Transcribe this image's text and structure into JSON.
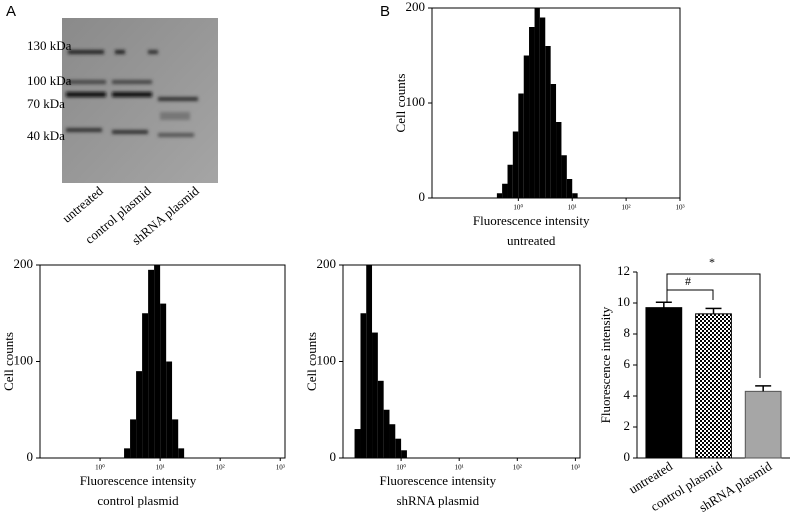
{
  "panel_labels": [
    "A",
    "B"
  ],
  "blot": {
    "markers": [
      "130 kDa",
      "100 kDa",
      "70 kDa",
      "40 kDa"
    ],
    "lanes": [
      "untreated",
      "control plasmid",
      "shRNA plasmid"
    ]
  },
  "chart_data": [
    {
      "type": "histogram",
      "subtitle": "untreated",
      "xlabel": "Fluorescence intensity",
      "ylabel": "Cell counts",
      "xscale": "log",
      "xlim": [
        0.025,
        1000
      ],
      "xticks": [
        {
          "value": 1,
          "label": "10⁰"
        },
        {
          "value": 10,
          "label": "10¹"
        },
        {
          "value": 100,
          "label": "10²"
        },
        {
          "value": 1000,
          "label": "10³"
        }
      ],
      "ylim": [
        0,
        200
      ],
      "yticks": [
        0,
        100,
        200
      ],
      "color": "#000000",
      "bins": [
        0.4,
        0.5,
        0.63,
        0.79,
        1,
        1.26,
        1.58,
        2,
        2.51,
        3.16,
        3.98,
        5.01,
        6.31,
        7.94,
        10,
        12.6
      ],
      "counts": [
        5,
        15,
        35,
        70,
        110,
        150,
        180,
        200,
        190,
        160,
        120,
        80,
        45,
        20,
        5
      ]
    },
    {
      "type": "histogram",
      "subtitle": "control plasmid",
      "xlabel": "Fluorescence intensity",
      "ylabel": "Cell counts",
      "xscale": "log",
      "xlim": [
        0.1,
        1200
      ],
      "xticks": [
        {
          "value": 1,
          "label": "10⁰"
        },
        {
          "value": 10,
          "label": "10¹"
        },
        {
          "value": 100,
          "label": "10²"
        },
        {
          "value": 1000,
          "label": "10³"
        }
      ],
      "ylim": [
        0,
        200
      ],
      "yticks": [
        0,
        100,
        200
      ],
      "color": "#000000",
      "bins": [
        2.51,
        3.16,
        3.98,
        5.01,
        6.31,
        7.94,
        10,
        12.6,
        15.8,
        20,
        25.1
      ],
      "counts": [
        10,
        40,
        90,
        150,
        195,
        200,
        160,
        100,
        40,
        10
      ]
    },
    {
      "type": "histogram",
      "subtitle": "shRNA plasmid",
      "xlabel": "Fluorescence intensity",
      "ylabel": "Cell counts",
      "xscale": "log",
      "xlim": [
        0.1,
        1200
      ],
      "xticks": [
        {
          "value": 1,
          "label": "10⁰"
        },
        {
          "value": 10,
          "label": "10¹"
        },
        {
          "value": 100,
          "label": "10²"
        },
        {
          "value": 1000,
          "label": "10³"
        }
      ],
      "ylim": [
        0,
        200
      ],
      "yticks": [
        0,
        100,
        200
      ],
      "color": "#000000",
      "bins": [
        0.158,
        0.2,
        0.251,
        0.316,
        0.398,
        0.501,
        0.631,
        0.794,
        1,
        1.26
      ],
      "counts": [
        30,
        150,
        200,
        130,
        80,
        50,
        35,
        20,
        8
      ]
    },
    {
      "type": "bar",
      "ylabel": "Fluorescence intensity",
      "categories": [
        "untreated",
        "control plasmid",
        "shRNA plasmid"
      ],
      "values": [
        9.7,
        9.3,
        4.3
      ],
      "errors": [
        0.35,
        0.35,
        0.35
      ],
      "colors": [
        "#000000",
        "#000000",
        "#a6a6a6"
      ],
      "fills": [
        "solid",
        "checker",
        "solid"
      ],
      "ylim": [
        0,
        12
      ],
      "yticks": [
        0,
        2,
        4,
        6,
        8,
        10,
        12
      ],
      "annotations": [
        "#",
        "*"
      ]
    }
  ]
}
